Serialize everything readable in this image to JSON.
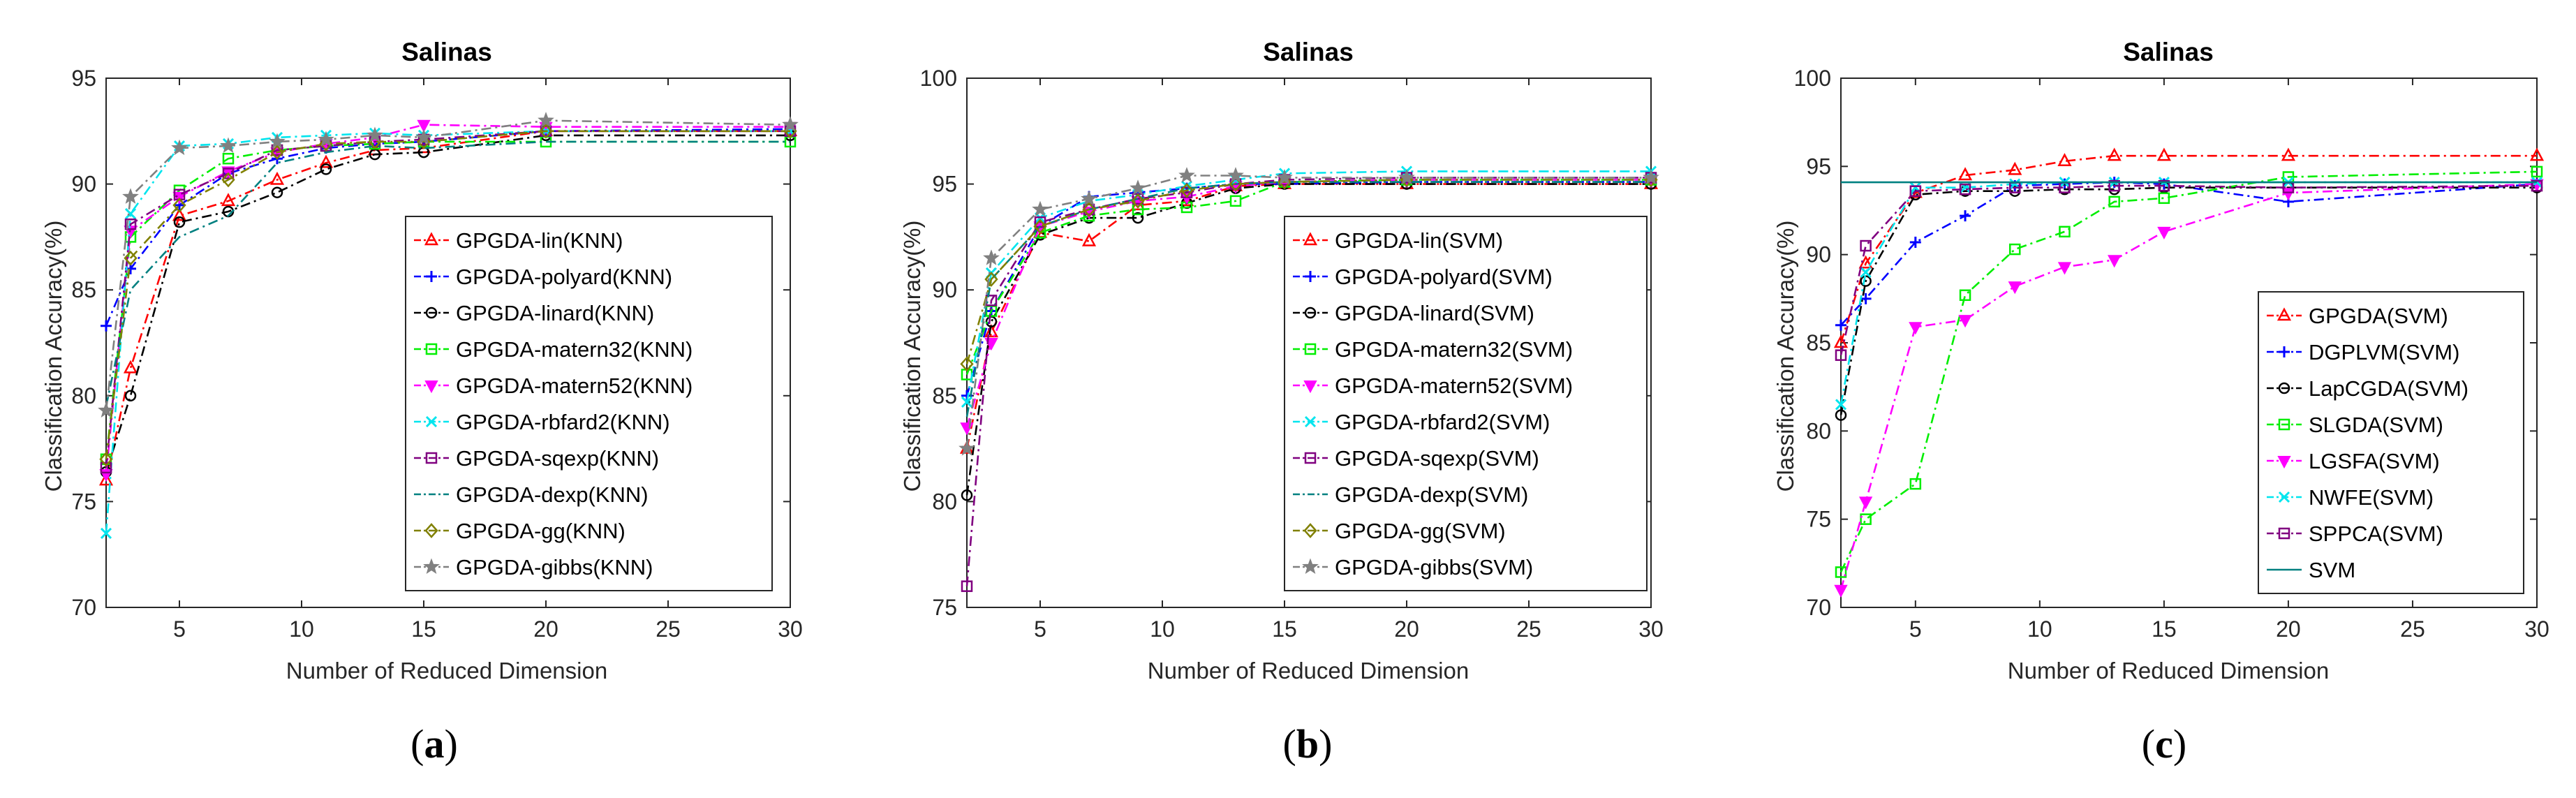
{
  "panel_labels": [
    {
      "open": "(",
      "letter": "a",
      "close": ")"
    },
    {
      "open": "(",
      "letter": "b",
      "close": ")"
    },
    {
      "open": "(",
      "letter": "c",
      "close": ")"
    }
  ],
  "chart_data": [
    {
      "type": "line",
      "title": "Salinas",
      "xlabel": "Number of Reduced Dimension",
      "ylabel": "Classification Accuracy(%)",
      "xlim": [
        2,
        30
      ],
      "ylim": [
        70,
        95
      ],
      "xticks": [
        5,
        10,
        15,
        20,
        25,
        30
      ],
      "yticks": [
        70,
        75,
        80,
        85,
        90,
        95
      ],
      "legend_position": "lower-right",
      "x": [
        2,
        3,
        5,
        7,
        9,
        11,
        13,
        15,
        20,
        30
      ],
      "series": [
        {
          "name": "GPGDA-lin(KNN)",
          "color": "#ff0000",
          "marker": "triangle",
          "line": "dashdot",
          "values": [
            76.0,
            81.3,
            88.5,
            89.2,
            90.2,
            91.0,
            91.6,
            91.7,
            92.5,
            92.5
          ]
        },
        {
          "name": "GPGDA-polyard(KNN)",
          "color": "#0000ff",
          "marker": "plus",
          "line": "dashdot",
          "values": [
            83.3,
            86.0,
            89.0,
            90.5,
            91.2,
            91.7,
            91.9,
            92.0,
            92.5,
            92.6
          ]
        },
        {
          "name": "GPGDA-linard(KNN)",
          "color": "#000000",
          "marker": "circle",
          "line": "dashdot",
          "values": [
            76.4,
            80.0,
            88.2,
            88.7,
            89.6,
            90.7,
            91.4,
            91.5,
            92.3,
            92.3
          ]
        },
        {
          "name": "GPGDA-matern32(KNN)",
          "color": "#00ee00",
          "marker": "square",
          "line": "dashdot",
          "values": [
            77.0,
            87.5,
            89.7,
            91.2,
            91.6,
            91.8,
            91.9,
            92.0,
            92.0,
            92.0
          ]
        },
        {
          "name": "GPGDA-matern52(KNN)",
          "color": "#ff00ff",
          "marker": "triangle-down",
          "line": "dashdot",
          "values": [
            76.3,
            87.8,
            89.4,
            90.6,
            91.5,
            91.9,
            92.2,
            92.8,
            92.7,
            92.7
          ]
        },
        {
          "name": "GPGDA-rbfard2(KNN)",
          "color": "#00e5ee",
          "marker": "x",
          "line": "dashdot",
          "values": [
            73.5,
            88.6,
            91.8,
            91.9,
            92.2,
            92.3,
            92.4,
            92.3,
            92.5,
            92.5
          ]
        },
        {
          "name": "GPGDA-sqexp(KNN)",
          "color": "#800080",
          "marker": "square",
          "line": "dashdot",
          "values": [
            76.6,
            88.1,
            89.5,
            90.5,
            91.6,
            91.8,
            92.0,
            92.1,
            92.5,
            92.5
          ]
        },
        {
          "name": "GPGDA-dexp(KNN)",
          "color": "#008080",
          "marker": "none",
          "line": "dashdot",
          "values": [
            79.5,
            85.0,
            87.5,
            88.5,
            91.0,
            91.5,
            91.8,
            91.7,
            92.0,
            92.0
          ]
        },
        {
          "name": "GPGDA-gg(KNN)",
          "color": "#808000",
          "marker": "diamond",
          "line": "dashdot",
          "values": [
            77.0,
            86.5,
            89.0,
            90.2,
            91.5,
            91.9,
            92.0,
            92.0,
            92.5,
            92.5
          ]
        },
        {
          "name": "GPGDA-gibbs(KNN)",
          "color": "#808080",
          "marker": "star",
          "line": "dashdot",
          "values": [
            79.3,
            89.4,
            91.7,
            91.8,
            92.0,
            92.1,
            92.3,
            92.2,
            93.0,
            92.8
          ]
        }
      ]
    },
    {
      "type": "line",
      "title": "Salinas",
      "xlabel": "Number of Reduced Dimension",
      "ylabel": "Classification Accuracy(%)",
      "xlim": [
        2,
        30
      ],
      "ylim": [
        75,
        100
      ],
      "xticks": [
        5,
        10,
        15,
        20,
        25,
        30
      ],
      "yticks": [
        75,
        80,
        85,
        90,
        95,
        100
      ],
      "legend_position": "lower-right",
      "x": [
        2,
        3,
        5,
        7,
        9,
        11,
        13,
        15,
        20,
        30
      ],
      "series": [
        {
          "name": "GPGDA-lin(SVM)",
          "color": "#ff0000",
          "marker": "triangle",
          "line": "dashdot",
          "values": [
            82.5,
            88.0,
            92.7,
            92.3,
            94.0,
            94.2,
            94.9,
            95.0,
            95.0,
            95.0
          ]
        },
        {
          "name": "GPGDA-polyard(SVM)",
          "color": "#0000ff",
          "marker": "plus",
          "line": "dashdot",
          "values": [
            85.0,
            89.0,
            93.0,
            94.4,
            94.6,
            94.8,
            95.0,
            95.0,
            95.1,
            95.1
          ]
        },
        {
          "name": "GPGDA-linard(SVM)",
          "color": "#000000",
          "marker": "circle",
          "line": "dashdot",
          "values": [
            80.3,
            88.5,
            92.6,
            93.4,
            93.4,
            94.1,
            94.8,
            95.0,
            95.0,
            95.0
          ]
        },
        {
          "name": "GPGDA-matern32(SVM)",
          "color": "#00ee00",
          "marker": "square",
          "line": "dashdot",
          "values": [
            86.0,
            89.0,
            92.7,
            93.5,
            93.8,
            93.9,
            94.2,
            95.1,
            95.2,
            95.2
          ]
        },
        {
          "name": "GPGDA-matern52(SVM)",
          "color": "#ff00ff",
          "marker": "triangle-down",
          "line": "dashdot",
          "values": [
            83.5,
            87.5,
            93.0,
            93.7,
            94.2,
            94.4,
            94.9,
            95.1,
            95.2,
            95.2
          ]
        },
        {
          "name": "GPGDA-rbfard2(SVM)",
          "color": "#00e5ee",
          "marker": "x",
          "line": "dashdot",
          "values": [
            84.7,
            90.8,
            93.4,
            94.2,
            94.5,
            94.9,
            95.2,
            95.5,
            95.6,
            95.6
          ]
        },
        {
          "name": "GPGDA-sqexp(SVM)",
          "color": "#800080",
          "marker": "square",
          "line": "dashdot",
          "values": [
            76.0,
            89.5,
            93.2,
            93.8,
            94.3,
            94.6,
            95.0,
            95.2,
            95.3,
            95.3
          ]
        },
        {
          "name": "GPGDA-dexp(SVM)",
          "color": "#008080",
          "marker": "none",
          "line": "dashdot",
          "values": [
            84.0,
            90.5,
            93.0,
            93.8,
            94.3,
            94.8,
            95.0,
            95.1,
            95.1,
            95.1
          ]
        },
        {
          "name": "GPGDA-gg(SVM)",
          "color": "#808000",
          "marker": "diamond",
          "line": "dashdot",
          "values": [
            86.5,
            90.5,
            93.0,
            93.8,
            94.2,
            94.7,
            95.0,
            95.1,
            95.2,
            95.2
          ]
        },
        {
          "name": "GPGDA-gibbs(SVM)",
          "color": "#808080",
          "marker": "star",
          "line": "dashdot",
          "values": [
            82.5,
            91.5,
            93.8,
            94.3,
            94.8,
            95.4,
            95.4,
            95.3,
            95.3,
            95.3
          ]
        }
      ]
    },
    {
      "type": "line",
      "title": "Salinas",
      "xlabel": "Number of Reduced Dimension",
      "ylabel": "Classification Accuracy(%)",
      "xlim": [
        2,
        30
      ],
      "ylim": [
        70,
        100
      ],
      "xticks": [
        5,
        10,
        15,
        20,
        25,
        30
      ],
      "yticks": [
        70,
        75,
        80,
        85,
        90,
        95,
        100
      ],
      "legend_position": "lower-right",
      "x": [
        2,
        3,
        5,
        7,
        9,
        11,
        13,
        15,
        20,
        30
      ],
      "series": [
        {
          "name": "GPGDA(SVM)",
          "color": "#ff0000",
          "marker": "triangle",
          "line": "dashdot",
          "values": [
            85.0,
            89.5,
            93.5,
            94.5,
            94.8,
            95.3,
            95.6,
            95.6,
            95.6,
            95.6
          ]
        },
        {
          "name": "DGPLVM(SVM)",
          "color": "#0000ff",
          "marker": "plus",
          "line": "dashdot",
          "values": [
            86.0,
            87.5,
            90.7,
            92.2,
            93.9,
            94.0,
            94.1,
            94.0,
            93.0,
            94.0
          ]
        },
        {
          "name": "LapCGDA(SVM)",
          "color": "#000000",
          "marker": "circle",
          "line": "dashdot",
          "values": [
            80.9,
            88.5,
            93.4,
            93.6,
            93.6,
            93.7,
            93.7,
            93.8,
            93.8,
            93.8
          ]
        },
        {
          "name": "SLGDA(SVM)",
          "color": "#00ee00",
          "marker": "square",
          "line": "dashdot",
          "values": [
            72.0,
            75.0,
            77.0,
            87.7,
            90.3,
            91.3,
            93.0,
            93.2,
            94.4,
            94.7
          ]
        },
        {
          "name": "LGSFA(SVM)",
          "color": "#ff00ff",
          "marker": "triangle-down",
          "line": "dashdot",
          "values": [
            71.0,
            76.0,
            85.9,
            86.3,
            88.2,
            89.3,
            89.7,
            91.3,
            93.5,
            94.0
          ]
        },
        {
          "name": "NWFE(SVM)",
          "color": "#00e5ee",
          "marker": "x",
          "line": "dashdot",
          "values": [
            81.5,
            89.0,
            93.8,
            93.8,
            94.0,
            94.1,
            94.1,
            94.1,
            94.1,
            94.1
          ]
        },
        {
          "name": "SPPCA(SVM)",
          "color": "#800080",
          "marker": "square",
          "line": "dashdot",
          "values": [
            84.3,
            90.5,
            93.6,
            93.7,
            93.8,
            93.8,
            93.9,
            93.9,
            93.8,
            93.9
          ]
        },
        {
          "name": "SVM",
          "color": "#008080",
          "marker": "none",
          "line": "solid",
          "values": [
            94.1,
            94.1,
            94.1,
            94.1,
            94.1,
            94.1,
            94.1,
            94.1,
            94.1,
            94.1
          ]
        }
      ]
    }
  ]
}
